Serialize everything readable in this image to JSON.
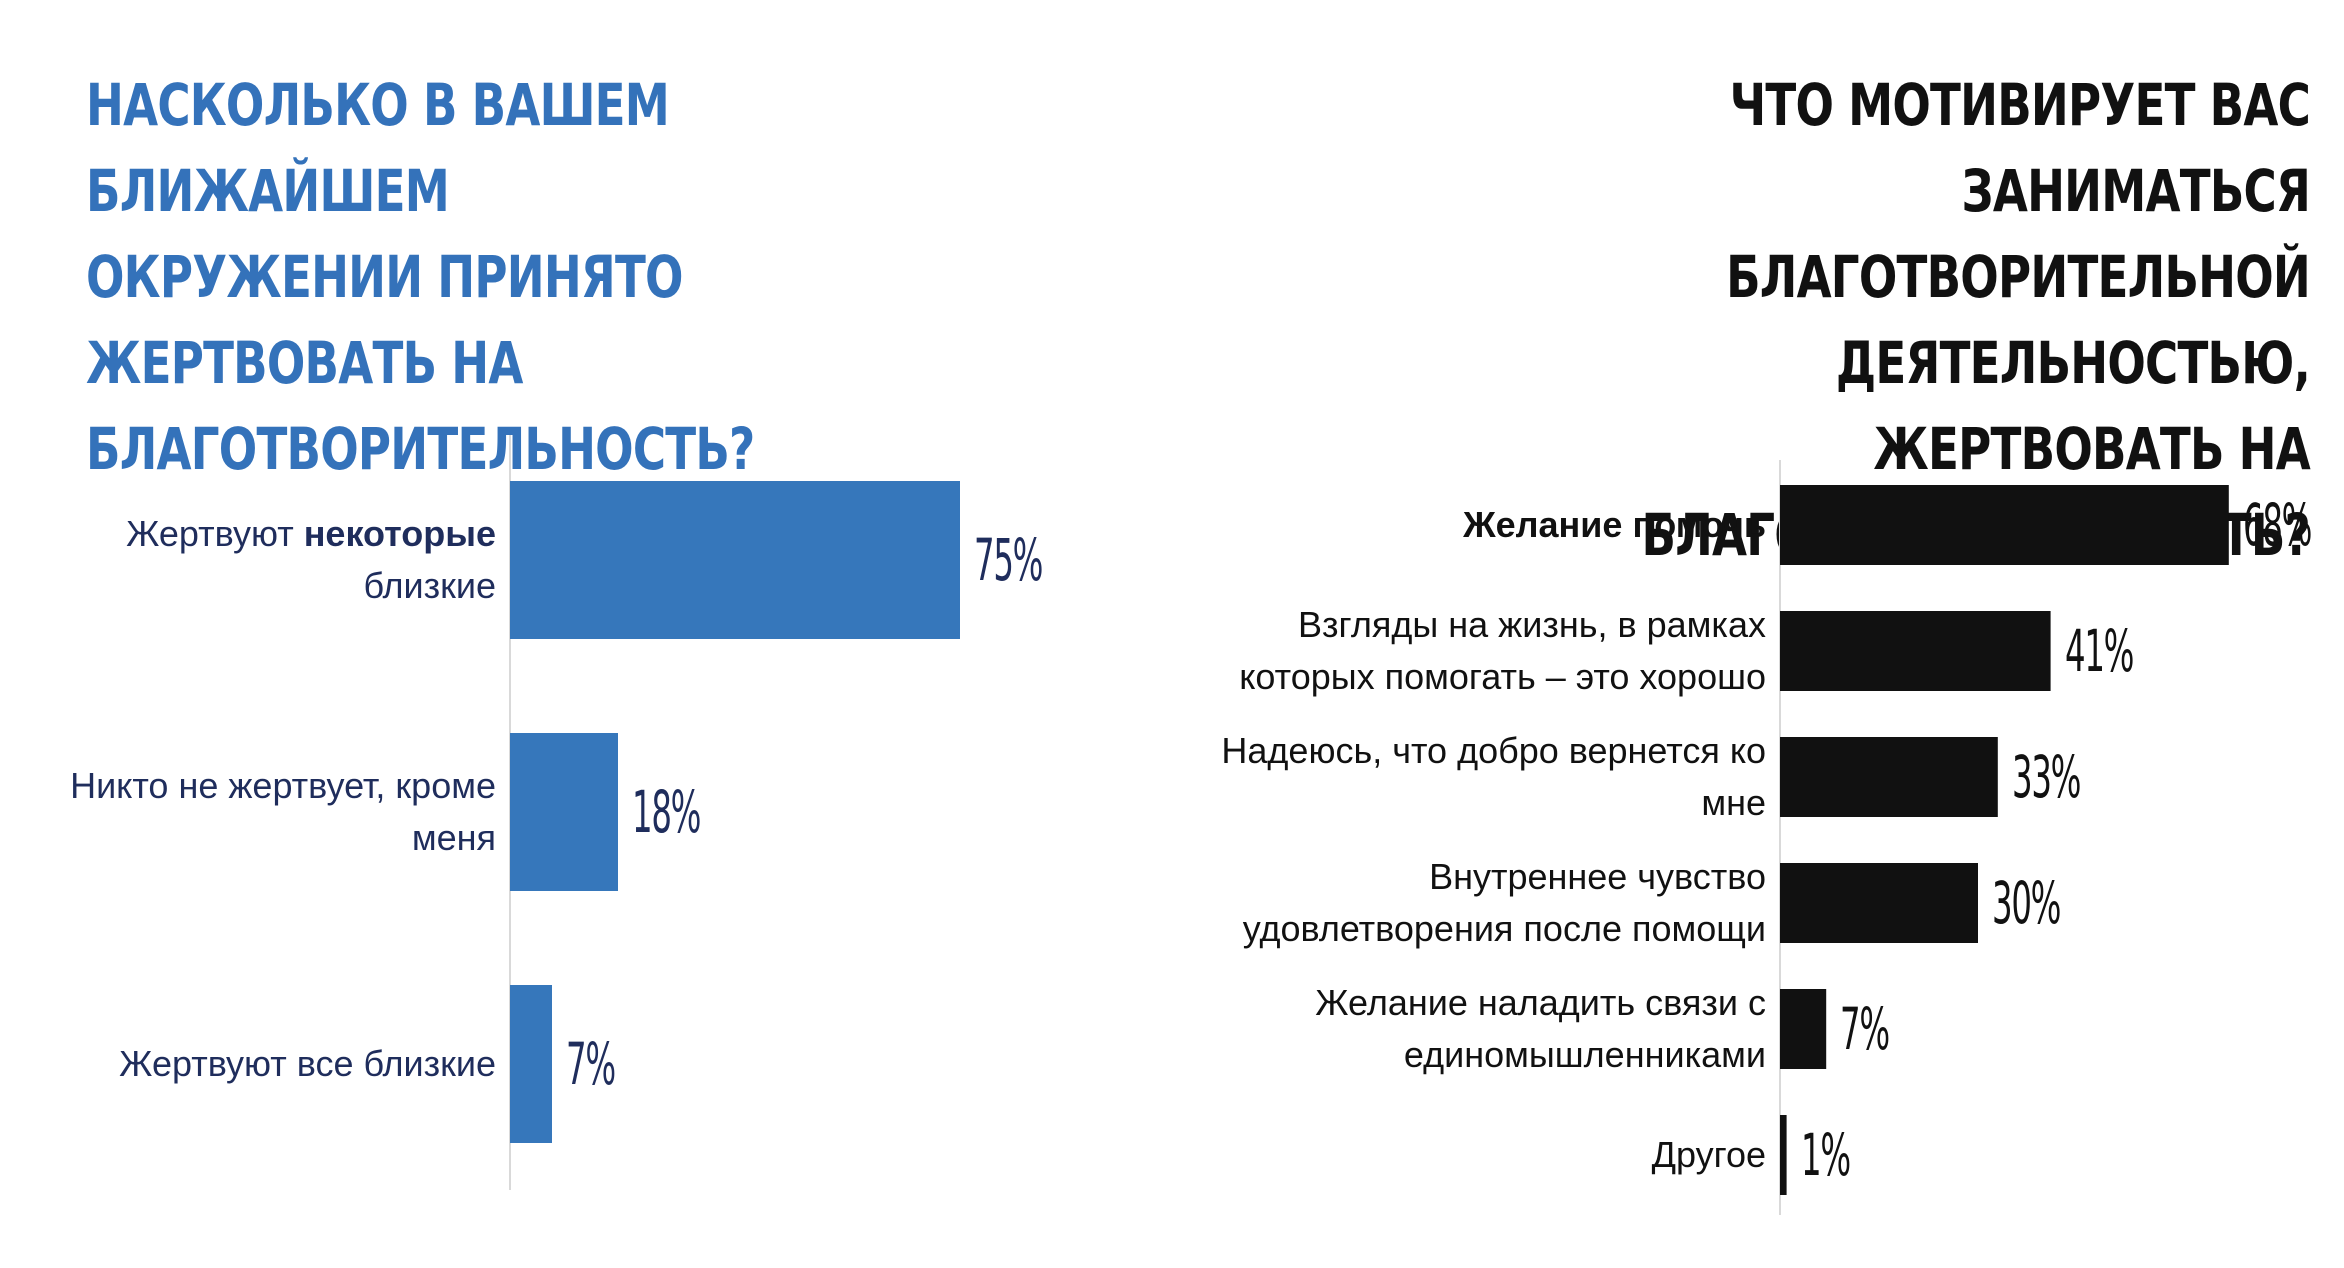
{
  "left": {
    "title": "Насколько в вашем ближайшем\nокружении принято жертвовать на\nблаготворительность?"
  },
  "right": {
    "title": "Что мотивирует вас заниматься\nблаготворительной деятельностью,\nжертвовать на благотворительность?"
  },
  "colors": {
    "left_bar": "#3677bb",
    "right_bar": "#111111",
    "axis": "#d9d9d9"
  },
  "chart_data": [
    {
      "type": "bar",
      "orientation": "horizontal",
      "title": "Насколько в вашем ближайшем окружении принято жертвовать на благотворительность?",
      "categories": [
        {
          "pre": "Жертвуют ",
          "bold": "некоторые",
          "post": "\nблизкие"
        },
        {
          "pre": "Никто не жертвует, кроме\nменя",
          "bold": "",
          "post": ""
        },
        {
          "pre": "Жертвуют все близкие",
          "bold": "",
          "post": ""
        }
      ],
      "values": [
        75,
        18,
        7
      ],
      "value_labels": [
        "75%",
        "18%",
        "7%"
      ],
      "unit": "%",
      "xlim": [
        0,
        100
      ],
      "grid": false
    },
    {
      "type": "bar",
      "orientation": "horizontal",
      "title": "Что мотивирует вас заниматься благотворительной деятельностью, жертвовать на благотворительность?",
      "categories": [
        {
          "pre": "",
          "bold": "Желание помочь",
          "post": ""
        },
        {
          "pre": "Взгляды на жизнь, в рамках\nкоторых помогать – это хорошо",
          "bold": "",
          "post": ""
        },
        {
          "pre": "Надеюсь, что добро вернется ко\nмне",
          "bold": "",
          "post": ""
        },
        {
          "pre": "Внутреннее чувство\nудовлетворения после помощи",
          "bold": "",
          "post": ""
        },
        {
          "pre": "Желание наладить связи с\nединомышленниками",
          "bold": "",
          "post": ""
        },
        {
          "pre": "Другое",
          "bold": "",
          "post": ""
        }
      ],
      "values": [
        68,
        41,
        33,
        30,
        7,
        1
      ],
      "value_labels": [
        "68%",
        "41%",
        "33%",
        "30%",
        "7%",
        "1%"
      ],
      "unit": "%",
      "xlim": [
        0,
        100
      ],
      "grid": false
    }
  ]
}
